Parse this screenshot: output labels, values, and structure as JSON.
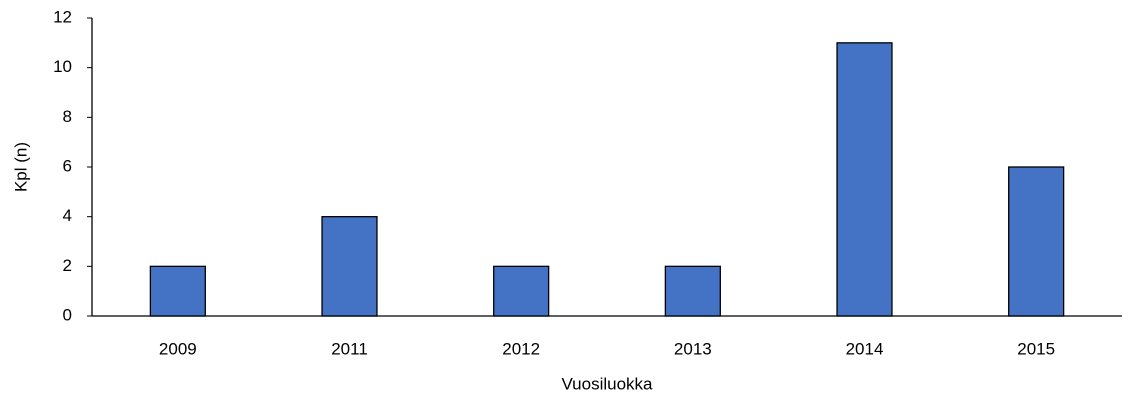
{
  "chart_data": {
    "type": "bar",
    "x_label": "Vuosiluokka",
    "y_label": "Kpl (n)",
    "categories": [
      "2009",
      "2011",
      "2012",
      "2013",
      "2014",
      "2015"
    ],
    "values": [
      2,
      4,
      2,
      2,
      11,
      6
    ],
    "color": "#4472c4",
    "ylim": [
      0,
      12
    ],
    "yticks": [
      0,
      2,
      4,
      6,
      8,
      10,
      12
    ],
    "grid": false
  }
}
